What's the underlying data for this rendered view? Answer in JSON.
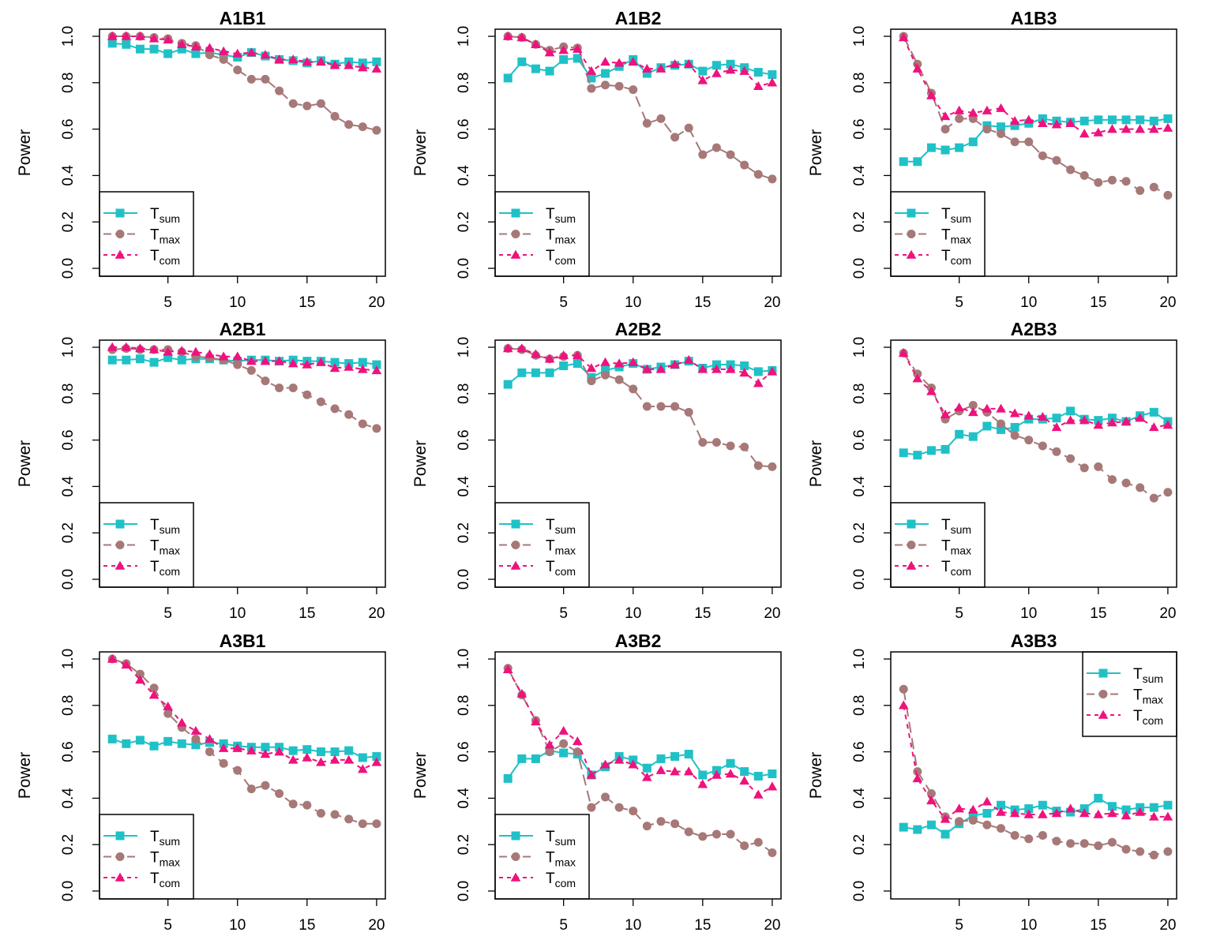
{
  "colors": {
    "sum": "#1fc1c7",
    "max": "#a67878",
    "com": "#ef127d"
  },
  "legend_labels": {
    "sum": {
      "main": "T",
      "sub": "sum"
    },
    "max": {
      "main": "T",
      "sub": "max"
    },
    "com": {
      "main": "T",
      "sub": "com"
    }
  },
  "chart_data": [
    {
      "type": "line",
      "title": "A1B1",
      "ylabel": "Power",
      "xlabel": "",
      "ylim": [
        0,
        1
      ],
      "xlim": [
        1,
        20
      ],
      "grid": false,
      "x": [
        1,
        2,
        3,
        4,
        5,
        6,
        7,
        8,
        9,
        10,
        11,
        12,
        13,
        14,
        15,
        16,
        17,
        18,
        19,
        20
      ],
      "xticks": [
        "5",
        "10",
        "15",
        "20"
      ],
      "yticks": [
        "0.0",
        "0.2",
        "0.4",
        "0.6",
        "0.8",
        "1.0"
      ],
      "legend": "bottom-left",
      "series": [
        {
          "name": "T_sum",
          "marker": "square",
          "values": [
            0.97,
            0.965,
            0.945,
            0.945,
            0.925,
            0.945,
            0.925,
            0.93,
            0.92,
            0.91,
            0.93,
            0.915,
            0.9,
            0.895,
            0.885,
            0.895,
            0.88,
            0.89,
            0.885,
            0.89
          ]
        },
        {
          "name": "T_max",
          "marker": "circle",
          "values": [
            1.0,
            1.0,
            1.0,
            0.995,
            0.99,
            0.97,
            0.96,
            0.92,
            0.9,
            0.855,
            0.815,
            0.815,
            0.765,
            0.71,
            0.7,
            0.71,
            0.655,
            0.62,
            0.61,
            0.595
          ]
        },
        {
          "name": "T_com",
          "marker": "triangle",
          "values": [
            1.0,
            1.0,
            1.0,
            0.99,
            0.985,
            0.965,
            0.955,
            0.95,
            0.935,
            0.925,
            0.93,
            0.92,
            0.9,
            0.9,
            0.89,
            0.89,
            0.875,
            0.875,
            0.865,
            0.86
          ]
        }
      ]
    },
    {
      "type": "line",
      "title": "A1B2",
      "ylabel": "Power",
      "xlabel": "",
      "ylim": [
        0,
        1
      ],
      "xlim": [
        1,
        20
      ],
      "grid": false,
      "x": [
        1,
        2,
        3,
        4,
        5,
        6,
        7,
        8,
        9,
        10,
        11,
        12,
        13,
        14,
        15,
        16,
        17,
        18,
        19,
        20
      ],
      "xticks": [
        "5",
        "10",
        "15",
        "20"
      ],
      "yticks": [
        "0.0",
        "0.2",
        "0.4",
        "0.6",
        "0.8",
        "1.0"
      ],
      "legend": "bottom-left",
      "series": [
        {
          "name": "T_sum",
          "marker": "square",
          "values": [
            0.82,
            0.89,
            0.86,
            0.85,
            0.9,
            0.905,
            0.82,
            0.84,
            0.87,
            0.9,
            0.84,
            0.865,
            0.875,
            0.88,
            0.85,
            0.875,
            0.88,
            0.865,
            0.845,
            0.835
          ]
        },
        {
          "name": "T_max",
          "marker": "circle",
          "values": [
            1.0,
            0.995,
            0.965,
            0.94,
            0.955,
            0.95,
            0.775,
            0.79,
            0.785,
            0.77,
            0.625,
            0.645,
            0.565,
            0.605,
            0.49,
            0.52,
            0.49,
            0.445,
            0.405,
            0.385
          ]
        },
        {
          "name": "T_com",
          "marker": "triangle",
          "values": [
            1.0,
            0.995,
            0.965,
            0.93,
            0.94,
            0.945,
            0.85,
            0.89,
            0.885,
            0.89,
            0.86,
            0.86,
            0.88,
            0.88,
            0.81,
            0.84,
            0.855,
            0.85,
            0.785,
            0.8
          ]
        }
      ]
    },
    {
      "type": "line",
      "title": "A1B3",
      "ylabel": "Power",
      "xlabel": "",
      "ylim": [
        0,
        1
      ],
      "xlim": [
        1,
        20
      ],
      "grid": false,
      "x": [
        1,
        2,
        3,
        4,
        5,
        6,
        7,
        8,
        9,
        10,
        11,
        12,
        13,
        14,
        15,
        16,
        17,
        18,
        19,
        20
      ],
      "xticks": [
        "5",
        "10",
        "15",
        "20"
      ],
      "yticks": [
        "0.0",
        "0.2",
        "0.4",
        "0.6",
        "0.8",
        "1.0"
      ],
      "legend": "bottom-left",
      "series": [
        {
          "name": "T_sum",
          "marker": "square",
          "values": [
            0.46,
            0.46,
            0.52,
            0.51,
            0.52,
            0.545,
            0.615,
            0.61,
            0.615,
            0.625,
            0.645,
            0.635,
            0.63,
            0.635,
            0.64,
            0.64,
            0.64,
            0.64,
            0.635,
            0.645
          ]
        },
        {
          "name": "T_max",
          "marker": "circle",
          "values": [
            1.0,
            0.88,
            0.755,
            0.6,
            0.645,
            0.645,
            0.6,
            0.58,
            0.545,
            0.545,
            0.485,
            0.465,
            0.425,
            0.4,
            0.37,
            0.38,
            0.375,
            0.335,
            0.35,
            0.315
          ]
        },
        {
          "name": "T_com",
          "marker": "triangle",
          "values": [
            0.995,
            0.86,
            0.745,
            0.655,
            0.68,
            0.67,
            0.68,
            0.69,
            0.635,
            0.64,
            0.625,
            0.62,
            0.625,
            0.58,
            0.585,
            0.6,
            0.6,
            0.6,
            0.6,
            0.605
          ]
        }
      ]
    },
    {
      "type": "line",
      "title": "A2B1",
      "ylabel": "Power",
      "xlabel": "",
      "ylim": [
        0,
        1
      ],
      "xlim": [
        1,
        20
      ],
      "grid": false,
      "x": [
        1,
        2,
        3,
        4,
        5,
        6,
        7,
        8,
        9,
        10,
        11,
        12,
        13,
        14,
        15,
        16,
        17,
        18,
        19,
        20
      ],
      "xticks": [
        "5",
        "10",
        "15",
        "20"
      ],
      "yticks": [
        "0.0",
        "0.2",
        "0.4",
        "0.6",
        "0.8",
        "1.0"
      ],
      "legend": "bottom-left",
      "series": [
        {
          "name": "T_sum",
          "marker": "square",
          "values": [
            0.945,
            0.945,
            0.95,
            0.935,
            0.955,
            0.945,
            0.95,
            0.95,
            0.945,
            0.94,
            0.945,
            0.945,
            0.94,
            0.945,
            0.94,
            0.94,
            0.935,
            0.93,
            0.935,
            0.925
          ]
        },
        {
          "name": "T_max",
          "marker": "circle",
          "values": [
            0.99,
            0.995,
            0.99,
            0.99,
            0.99,
            0.98,
            0.96,
            0.955,
            0.945,
            0.925,
            0.9,
            0.855,
            0.825,
            0.825,
            0.795,
            0.765,
            0.735,
            0.71,
            0.67,
            0.65
          ]
        },
        {
          "name": "T_com",
          "marker": "triangle",
          "values": [
            1.0,
            1.0,
            0.995,
            0.99,
            0.98,
            0.985,
            0.98,
            0.97,
            0.96,
            0.96,
            0.94,
            0.94,
            0.94,
            0.93,
            0.925,
            0.935,
            0.91,
            0.915,
            0.905,
            0.9
          ]
        }
      ]
    },
    {
      "type": "line",
      "title": "A2B2",
      "ylabel": "Power",
      "xlabel": "",
      "ylim": [
        0,
        1
      ],
      "xlim": [
        1,
        20
      ],
      "grid": false,
      "x": [
        1,
        2,
        3,
        4,
        5,
        6,
        7,
        8,
        9,
        10,
        11,
        12,
        13,
        14,
        15,
        16,
        17,
        18,
        19,
        20
      ],
      "xticks": [
        "5",
        "10",
        "15",
        "20"
      ],
      "yticks": [
        "0.0",
        "0.2",
        "0.4",
        "0.6",
        "0.8",
        "1.0"
      ],
      "legend": "bottom-left",
      "series": [
        {
          "name": "T_sum",
          "marker": "square",
          "values": [
            0.84,
            0.89,
            0.89,
            0.89,
            0.92,
            0.93,
            0.87,
            0.9,
            0.915,
            0.93,
            0.905,
            0.915,
            0.925,
            0.94,
            0.91,
            0.925,
            0.925,
            0.92,
            0.895,
            0.9
          ]
        },
        {
          "name": "T_max",
          "marker": "circle",
          "values": [
            0.995,
            0.99,
            0.965,
            0.95,
            0.96,
            0.965,
            0.855,
            0.88,
            0.86,
            0.82,
            0.745,
            0.745,
            0.745,
            0.72,
            0.59,
            0.59,
            0.575,
            0.57,
            0.49,
            0.485
          ]
        },
        {
          "name": "T_com",
          "marker": "triangle",
          "values": [
            0.995,
            0.995,
            0.97,
            0.95,
            0.965,
            0.965,
            0.91,
            0.935,
            0.93,
            0.935,
            0.905,
            0.905,
            0.925,
            0.945,
            0.905,
            0.905,
            0.905,
            0.89,
            0.845,
            0.895
          ]
        }
      ]
    },
    {
      "type": "line",
      "title": "A2B3",
      "ylabel": "Power",
      "xlabel": "",
      "ylim": [
        0,
        1
      ],
      "xlim": [
        1,
        20
      ],
      "grid": false,
      "x": [
        1,
        2,
        3,
        4,
        5,
        6,
        7,
        8,
        9,
        10,
        11,
        12,
        13,
        14,
        15,
        16,
        17,
        18,
        19,
        20
      ],
      "xticks": [
        "5",
        "10",
        "15",
        "20"
      ],
      "yticks": [
        "0.0",
        "0.2",
        "0.4",
        "0.6",
        "0.8",
        "1.0"
      ],
      "legend": "bottom-left",
      "series": [
        {
          "name": "T_sum",
          "marker": "square",
          "values": [
            0.545,
            0.535,
            0.555,
            0.56,
            0.625,
            0.615,
            0.66,
            0.645,
            0.655,
            0.69,
            0.69,
            0.695,
            0.725,
            0.69,
            0.685,
            0.695,
            0.68,
            0.705,
            0.72,
            0.68
          ]
        },
        {
          "name": "T_max",
          "marker": "circle",
          "values": [
            0.975,
            0.885,
            0.825,
            0.69,
            0.725,
            0.75,
            0.72,
            0.67,
            0.62,
            0.6,
            0.575,
            0.55,
            0.52,
            0.48,
            0.485,
            0.43,
            0.415,
            0.395,
            0.35,
            0.375
          ]
        },
        {
          "name": "T_com",
          "marker": "triangle",
          "values": [
            0.975,
            0.865,
            0.81,
            0.71,
            0.74,
            0.72,
            0.735,
            0.735,
            0.715,
            0.705,
            0.7,
            0.655,
            0.685,
            0.685,
            0.665,
            0.675,
            0.68,
            0.695,
            0.655,
            0.665
          ]
        }
      ]
    },
    {
      "type": "line",
      "title": "A3B1",
      "ylabel": "Power",
      "xlabel": "",
      "ylim": [
        0,
        1
      ],
      "xlim": [
        1,
        20
      ],
      "grid": false,
      "x": [
        1,
        2,
        3,
        4,
        5,
        6,
        7,
        8,
        9,
        10,
        11,
        12,
        13,
        14,
        15,
        16,
        17,
        18,
        19,
        20
      ],
      "xticks": [
        "5",
        "10",
        "15",
        "20"
      ],
      "yticks": [
        "0.0",
        "0.2",
        "0.4",
        "0.6",
        "0.8",
        "1.0"
      ],
      "legend": "bottom-left",
      "series": [
        {
          "name": "T_sum",
          "marker": "square",
          "values": [
            0.655,
            0.635,
            0.65,
            0.625,
            0.645,
            0.635,
            0.63,
            0.64,
            0.635,
            0.625,
            0.62,
            0.62,
            0.62,
            0.605,
            0.61,
            0.6,
            0.6,
            0.605,
            0.575,
            0.58
          ]
        },
        {
          "name": "T_max",
          "marker": "circle",
          "values": [
            1.0,
            0.98,
            0.935,
            0.875,
            0.765,
            0.705,
            0.655,
            0.6,
            0.55,
            0.52,
            0.44,
            0.455,
            0.42,
            0.375,
            0.37,
            0.335,
            0.33,
            0.31,
            0.29,
            0.29
          ]
        },
        {
          "name": "T_com",
          "marker": "triangle",
          "values": [
            1.0,
            0.975,
            0.91,
            0.845,
            0.795,
            0.725,
            0.69,
            0.655,
            0.615,
            0.615,
            0.605,
            0.59,
            0.6,
            0.565,
            0.575,
            0.555,
            0.565,
            0.565,
            0.525,
            0.555
          ]
        }
      ]
    },
    {
      "type": "line",
      "title": "A3B2",
      "ylabel": "Power",
      "xlabel": "",
      "ylim": [
        0,
        1
      ],
      "xlim": [
        1,
        20
      ],
      "grid": false,
      "x": [
        1,
        2,
        3,
        4,
        5,
        6,
        7,
        8,
        9,
        10,
        11,
        12,
        13,
        14,
        15,
        16,
        17,
        18,
        19,
        20
      ],
      "xticks": [
        "5",
        "10",
        "15",
        "20"
      ],
      "yticks": [
        "0.0",
        "0.2",
        "0.4",
        "0.6",
        "0.8",
        "1.0"
      ],
      "legend": "bottom-left",
      "series": [
        {
          "name": "T_sum",
          "marker": "square",
          "values": [
            0.485,
            0.57,
            0.57,
            0.605,
            0.595,
            0.59,
            0.5,
            0.535,
            0.58,
            0.565,
            0.53,
            0.57,
            0.58,
            0.59,
            0.5,
            0.52,
            0.55,
            0.515,
            0.495,
            0.505
          ]
        },
        {
          "name": "T_max",
          "marker": "circle",
          "values": [
            0.96,
            0.845,
            0.735,
            0.6,
            0.635,
            0.6,
            0.36,
            0.405,
            0.36,
            0.345,
            0.28,
            0.3,
            0.29,
            0.255,
            0.235,
            0.245,
            0.245,
            0.195,
            0.21,
            0.165
          ]
        },
        {
          "name": "T_com",
          "marker": "triangle",
          "values": [
            0.955,
            0.85,
            0.73,
            0.63,
            0.69,
            0.645,
            0.5,
            0.545,
            0.565,
            0.545,
            0.49,
            0.52,
            0.515,
            0.515,
            0.46,
            0.5,
            0.505,
            0.475,
            0.415,
            0.45
          ]
        }
      ]
    },
    {
      "type": "line",
      "title": "A3B3",
      "ylabel": "Power",
      "xlabel": "",
      "ylim": [
        0,
        1
      ],
      "xlim": [
        1,
        20
      ],
      "grid": false,
      "x": [
        1,
        2,
        3,
        4,
        5,
        6,
        7,
        8,
        9,
        10,
        11,
        12,
        13,
        14,
        15,
        16,
        17,
        18,
        19,
        20
      ],
      "xticks": [
        "5",
        "10",
        "15",
        "20"
      ],
      "yticks": [
        "0.0",
        "0.2",
        "0.4",
        "0.6",
        "0.8",
        "1.0"
      ],
      "legend": "top-right",
      "series": [
        {
          "name": "T_sum",
          "marker": "square",
          "values": [
            0.275,
            0.265,
            0.285,
            0.245,
            0.29,
            0.325,
            0.335,
            0.37,
            0.35,
            0.355,
            0.37,
            0.345,
            0.34,
            0.355,
            0.4,
            0.365,
            0.35,
            0.36,
            0.36,
            0.37
          ]
        },
        {
          "name": "T_max",
          "marker": "circle",
          "values": [
            0.87,
            0.515,
            0.42,
            0.32,
            0.3,
            0.305,
            0.285,
            0.27,
            0.24,
            0.225,
            0.24,
            0.215,
            0.205,
            0.205,
            0.195,
            0.21,
            0.18,
            0.17,
            0.155,
            0.17
          ]
        },
        {
          "name": "T_com",
          "marker": "triangle",
          "values": [
            0.8,
            0.485,
            0.39,
            0.31,
            0.355,
            0.35,
            0.385,
            0.34,
            0.335,
            0.33,
            0.33,
            0.335,
            0.355,
            0.335,
            0.33,
            0.335,
            0.325,
            0.34,
            0.32,
            0.32
          ]
        }
      ]
    }
  ]
}
